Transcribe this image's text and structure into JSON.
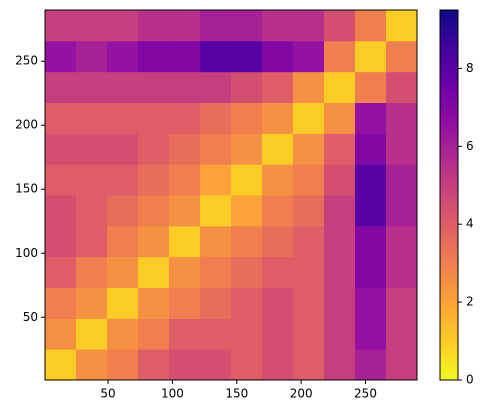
{
  "chart_data": {
    "type": "heatmap",
    "xlim": [
      1,
      290
    ],
    "ylim": [
      1,
      290
    ],
    "xticks": [
      50,
      100,
      150,
      200,
      250
    ],
    "yticks": [
      50,
      100,
      150,
      200,
      250
    ],
    "colormap": "plasma_r",
    "colorbar": {
      "lim": [
        0,
        9.5
      ],
      "ticks": [
        0,
        2,
        4,
        6,
        8
      ]
    },
    "z": [
      [
        1,
        2.5,
        3,
        4,
        4.5,
        4.5,
        4,
        4.5,
        4,
        5,
        6,
        5
      ],
      [
        2.5,
        1,
        2.5,
        3,
        4,
        4,
        4,
        4.5,
        4,
        5,
        6.5,
        5
      ],
      [
        3,
        2.5,
        1,
        2.5,
        3,
        3.5,
        4,
        4.5,
        4,
        5,
        6.5,
        5
      ],
      [
        4,
        3,
        2.5,
        1,
        2.5,
        3,
        3.5,
        4,
        4,
        5,
        7,
        5.5
      ],
      [
        4.5,
        4,
        3,
        2.5,
        1,
        2.5,
        3,
        3.5,
        4,
        5,
        7,
        5.5
      ],
      [
        4.5,
        4,
        3.5,
        3,
        2.5,
        1,
        2,
        3,
        3.5,
        5,
        8,
        6
      ],
      [
        4,
        4,
        4,
        3.5,
        3,
        2,
        1,
        2.5,
        3,
        4.5,
        8,
        6
      ],
      [
        4.5,
        4.5,
        4.5,
        4,
        3.5,
        3,
        2.5,
        1,
        2.5,
        4,
        7,
        5.5
      ],
      [
        4,
        4,
        4,
        4,
        4,
        3.5,
        3,
        2.5,
        1,
        2.5,
        6.5,
        5.5
      ],
      [
        5,
        5,
        5,
        5,
        5,
        5,
        4.5,
        4,
        2.5,
        1,
        3,
        4.5
      ],
      [
        6.5,
        6,
        6.5,
        7,
        7,
        8,
        8,
        7,
        6.5,
        3,
        1,
        3
      ],
      [
        5,
        5,
        5,
        5.5,
        5.5,
        6,
        6,
        5.5,
        5.5,
        4.5,
        3,
        1
      ]
    ]
  }
}
